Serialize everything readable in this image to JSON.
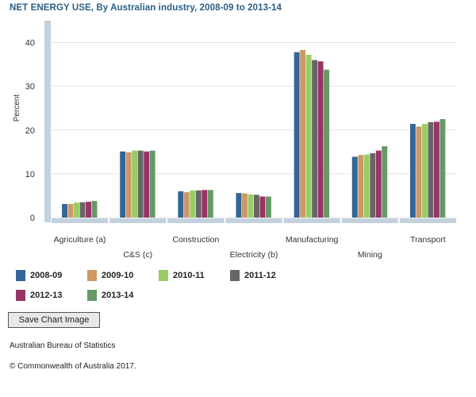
{
  "chart_data": {
    "type": "bar",
    "title": "NET ENERGY USE, By Australian industry, 2008-09 to 2013-14",
    "ylabel": "Percent",
    "xlabel": "",
    "ylim": [
      0,
      45
    ],
    "yticks": [
      0,
      10,
      20,
      30,
      40
    ],
    "grid": true,
    "legend_position": "bottom",
    "categories": [
      "Agriculture (a)",
      "C&S (c)",
      "Construction",
      "Electricity (b)",
      "Manufacturing",
      "Mining",
      "Transport"
    ],
    "series": [
      {
        "name": "2008-09",
        "color": "#336699",
        "values": [
          3.1,
          15.1,
          6.0,
          5.6,
          37.8,
          13.9,
          21.4
        ]
      },
      {
        "name": "2009-10",
        "color": "#cc9966",
        "values": [
          3.1,
          14.9,
          5.8,
          5.5,
          38.3,
          14.3,
          20.8
        ]
      },
      {
        "name": "2010-11",
        "color": "#99cc66",
        "values": [
          3.4,
          15.3,
          6.2,
          5.3,
          37.2,
          14.4,
          21.4
        ]
      },
      {
        "name": "2011-12",
        "color": "#666666",
        "values": [
          3.5,
          15.3,
          6.2,
          5.2,
          36.0,
          14.7,
          21.8
        ]
      },
      {
        "name": "2012-13",
        "color": "#993366",
        "values": [
          3.6,
          15.1,
          6.3,
          4.8,
          35.7,
          15.3,
          21.9
        ]
      },
      {
        "name": "2013-14",
        "color": "#669966",
        "values": [
          3.8,
          15.3,
          6.3,
          4.8,
          33.8,
          16.3,
          22.5
        ]
      }
    ]
  },
  "buttons": {
    "save_chart_image": "Save Chart Image"
  },
  "footer": {
    "source": "Australian Bureau of Statistics",
    "copyright": "© Commonwealth of Australia 2017."
  }
}
